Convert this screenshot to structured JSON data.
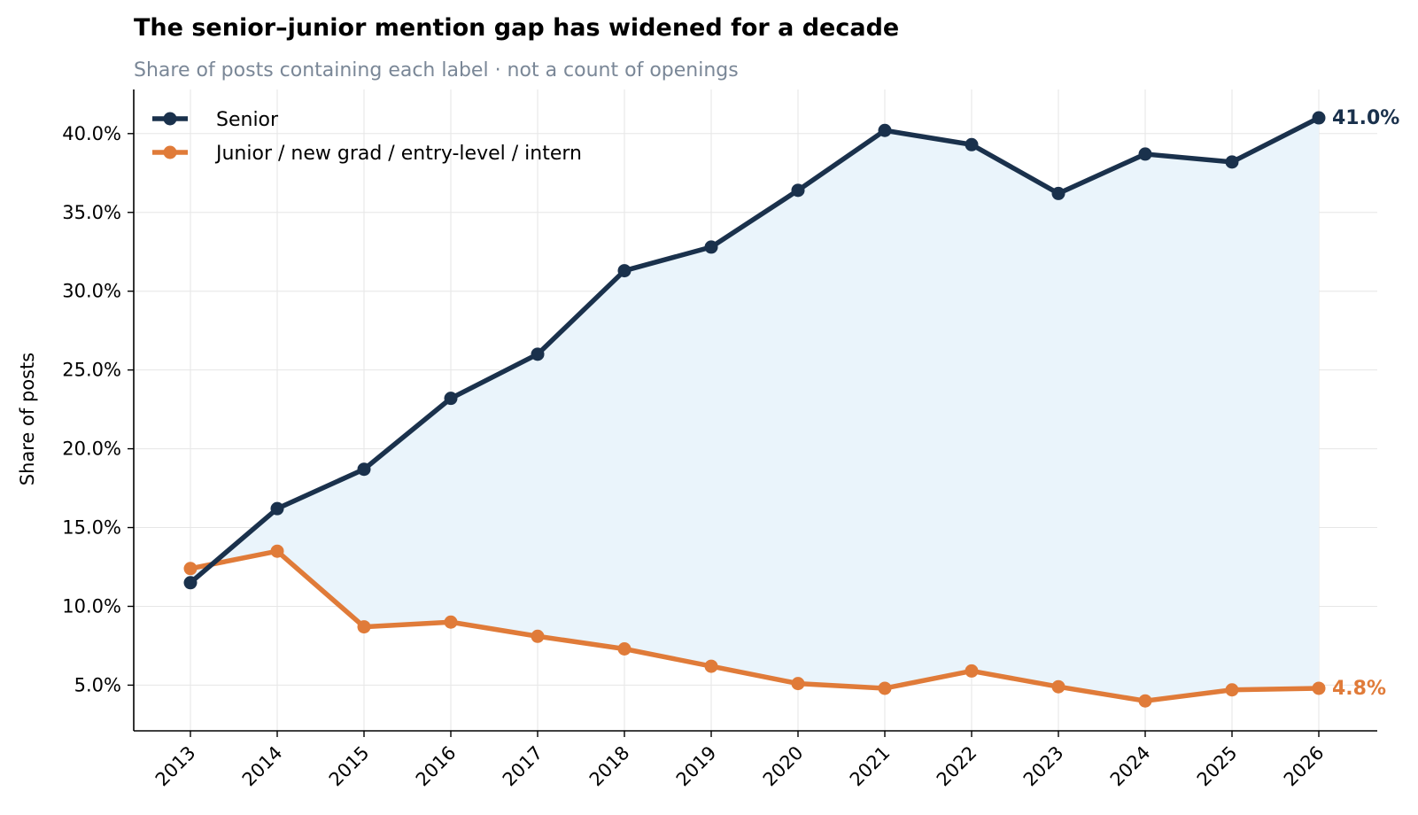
{
  "chart_data": {
    "type": "line",
    "title": "The senior–junior mention gap has widened for a decade",
    "subtitle": "Share of posts containing each label · not a count of openings",
    "xlabel": "",
    "ylabel": "Share of posts",
    "x": [
      "2013",
      "2014",
      "2015",
      "2016",
      "2017",
      "2018",
      "2019",
      "2020",
      "2021",
      "2022",
      "2023",
      "2024",
      "2025",
      "2026"
    ],
    "yticks": [
      {
        "value": 5,
        "label": "5.0%"
      },
      {
        "value": 10,
        "label": "10.0%"
      },
      {
        "value": 15,
        "label": "15.0%"
      },
      {
        "value": 20,
        "label": "20.0%"
      },
      {
        "value": 25,
        "label": "25.0%"
      },
      {
        "value": 30,
        "label": "30.0%"
      },
      {
        "value": 35,
        "label": "35.0%"
      },
      {
        "value": 40,
        "label": "40.0%"
      }
    ],
    "ylim": [
      2.1,
      42.8
    ],
    "grid": true,
    "legend_position": "top-left",
    "gap_fill_color": "#eaf4fb",
    "series": [
      {
        "name": "Senior",
        "color": "#1a314c",
        "values": [
          11.5,
          16.2,
          18.7,
          23.2,
          26.0,
          31.3,
          32.8,
          36.4,
          40.2,
          39.3,
          36.2,
          38.7,
          38.2,
          41.0
        ],
        "end_label": "41.0%"
      },
      {
        "name": "Junior / new grad / entry-level / intern",
        "color": "#e07b39",
        "values": [
          12.4,
          13.5,
          8.7,
          9.0,
          8.1,
          7.3,
          6.2,
          5.1,
          4.8,
          5.9,
          4.9,
          4.0,
          4.7,
          4.8
        ],
        "end_label": "4.8%"
      }
    ]
  }
}
